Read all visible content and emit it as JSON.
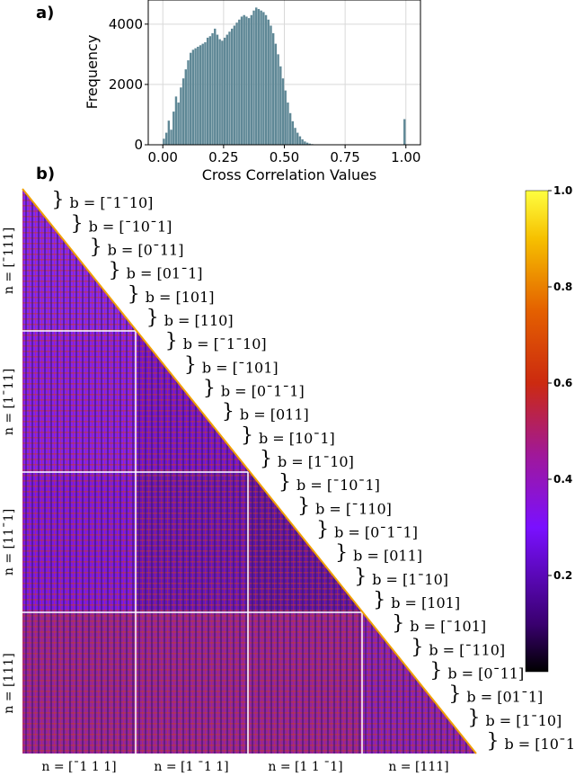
{
  "panel_a_label": "a)",
  "panel_b_label": "b)",
  "chart_data": [
    {
      "type": "bar",
      "panel": "a)",
      "xlabel": "Cross Correlation Values",
      "ylabel": "Frequency",
      "xlim": [
        -0.06,
        1.06
      ],
      "ylim": [
        0,
        4800
      ],
      "xticks": [
        "0.00",
        "0.25",
        "0.50",
        "0.75",
        "1.00"
      ],
      "yticks": [
        "0",
        "2000",
        "4000"
      ],
      "grid": true,
      "bar_color": "#5f8896",
      "bin_width": 0.01,
      "x": [
        0.0,
        0.01,
        0.02,
        0.03,
        0.04,
        0.05,
        0.06,
        0.07,
        0.08,
        0.09,
        0.1,
        0.11,
        0.12,
        0.13,
        0.14,
        0.15,
        0.16,
        0.17,
        0.18,
        0.19,
        0.2,
        0.21,
        0.22,
        0.23,
        0.24,
        0.25,
        0.26,
        0.27,
        0.28,
        0.29,
        0.3,
        0.31,
        0.32,
        0.33,
        0.34,
        0.35,
        0.36,
        0.37,
        0.38,
        0.39,
        0.4,
        0.41,
        0.42,
        0.43,
        0.44,
        0.45,
        0.46,
        0.47,
        0.48,
        0.49,
        0.5,
        0.51,
        0.52,
        0.53,
        0.54,
        0.55,
        0.56,
        0.57,
        0.58,
        0.59,
        0.6,
        0.61,
        0.62,
        0.63,
        0.64,
        0.99
      ],
      "values": [
        200,
        400,
        800,
        500,
        1100,
        1600,
        1400,
        1900,
        2200,
        2500,
        2800,
        3050,
        3150,
        3200,
        3250,
        3300,
        3350,
        3400,
        3550,
        3600,
        3700,
        3850,
        3650,
        3500,
        3450,
        3550,
        3650,
        3750,
        3850,
        3950,
        4050,
        4150,
        4250,
        4300,
        4250,
        4200,
        4300,
        4450,
        4550,
        4500,
        4450,
        4400,
        4300,
        4150,
        3950,
        3700,
        3350,
        3000,
        2600,
        2200,
        1800,
        1400,
        1050,
        780,
        560,
        400,
        280,
        180,
        110,
        70,
        40,
        22,
        12,
        6,
        3,
        850
      ]
    },
    {
      "type": "heatmap",
      "panel": "b)",
      "shape": "lower-triangular",
      "colormap": "gnuplot",
      "colorbar_range": [
        0.0,
        1.0
      ],
      "colorbar_ticks": [
        "1.0",
        "0.8",
        "0.6",
        "0.4",
        "0.2"
      ],
      "column_groups": [
        "n = [¯1 1 1]",
        "n = [1 ¯1 1]",
        "n = [1 1 ¯1]",
        "n = [111]"
      ],
      "row_groups": [
        "n = [¯111]",
        "n = [1¯11]",
        "n = [11¯1]",
        "n = [111]"
      ],
      "b_labels": [
        "b = [¯1¯10]",
        "b = [¯10¯1]",
        "b = [0¯11]",
        "b = [01¯1]",
        "b = [101]",
        "b = [110]",
        "b = [¯1¯10]",
        "b = [¯101]",
        "b = [0¯1¯1]",
        "b = [011]",
        "b = [10¯1]",
        "b = [1¯10]",
        "b = [¯10¯1]",
        "b = [¯110]",
        "b = [0¯1¯1]",
        "b = [011]",
        "b = [1¯10]",
        "b = [101]",
        "b = [¯101]",
        "b = [¯110]",
        "b = [0¯11]",
        "b = [01¯1]",
        "b = [1¯10]",
        "b = [10¯1]"
      ]
    }
  ]
}
